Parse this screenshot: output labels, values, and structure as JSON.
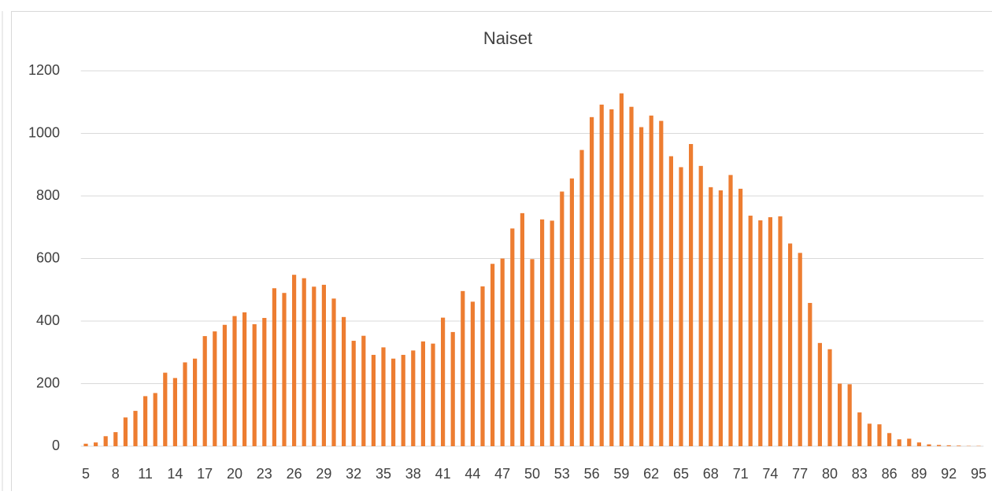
{
  "chart_data": {
    "type": "bar",
    "title": "Naiset",
    "categories": [
      "5",
      null,
      null,
      "8",
      null,
      null,
      "11",
      null,
      null,
      "14",
      null,
      null,
      "17",
      null,
      null,
      "20",
      null,
      null,
      "23",
      null,
      null,
      "26",
      null,
      null,
      "29",
      null,
      null,
      "32",
      null,
      null,
      "35",
      null,
      null,
      "38",
      null,
      null,
      "41",
      null,
      null,
      "44",
      null,
      null,
      "47",
      null,
      null,
      "50",
      null,
      null,
      "53",
      null,
      null,
      "56",
      null,
      null,
      "59",
      null,
      null,
      "62",
      null,
      null,
      "65",
      null,
      null,
      "68",
      null,
      null,
      "71",
      null,
      null,
      "74",
      null,
      null,
      "77",
      null,
      null,
      "80",
      null,
      null,
      "83",
      null,
      null,
      "86",
      null,
      null,
      "89",
      null,
      null,
      "92",
      null,
      null,
      "95"
    ],
    "values": [
      8,
      12,
      32,
      45,
      92,
      113,
      160,
      170,
      235,
      218,
      268,
      280,
      352,
      367,
      388,
      416,
      428,
      390,
      410,
      505,
      490,
      548,
      537,
      510,
      516,
      472,
      413,
      337,
      353,
      292,
      316,
      280,
      292,
      306,
      335,
      328,
      411,
      365,
      496,
      462,
      511,
      583,
      600,
      696,
      745,
      598,
      725,
      721,
      814,
      856,
      947,
      1052,
      1092,
      1077,
      1128,
      1085,
      1020,
      1057,
      1040,
      927,
      892,
      966,
      896,
      828,
      818,
      867,
      823,
      737,
      722,
      732,
      735,
      648,
      618,
      458,
      330,
      310,
      200,
      198,
      108,
      72,
      70,
      42,
      22,
      24,
      12,
      6,
      4,
      3,
      2,
      1,
      1
    ],
    "color": "#ed7d31",
    "ylim": [
      0,
      1200
    ],
    "yticks": [
      0,
      200,
      400,
      600,
      800,
      1000,
      1200
    ],
    "grid": true
  }
}
